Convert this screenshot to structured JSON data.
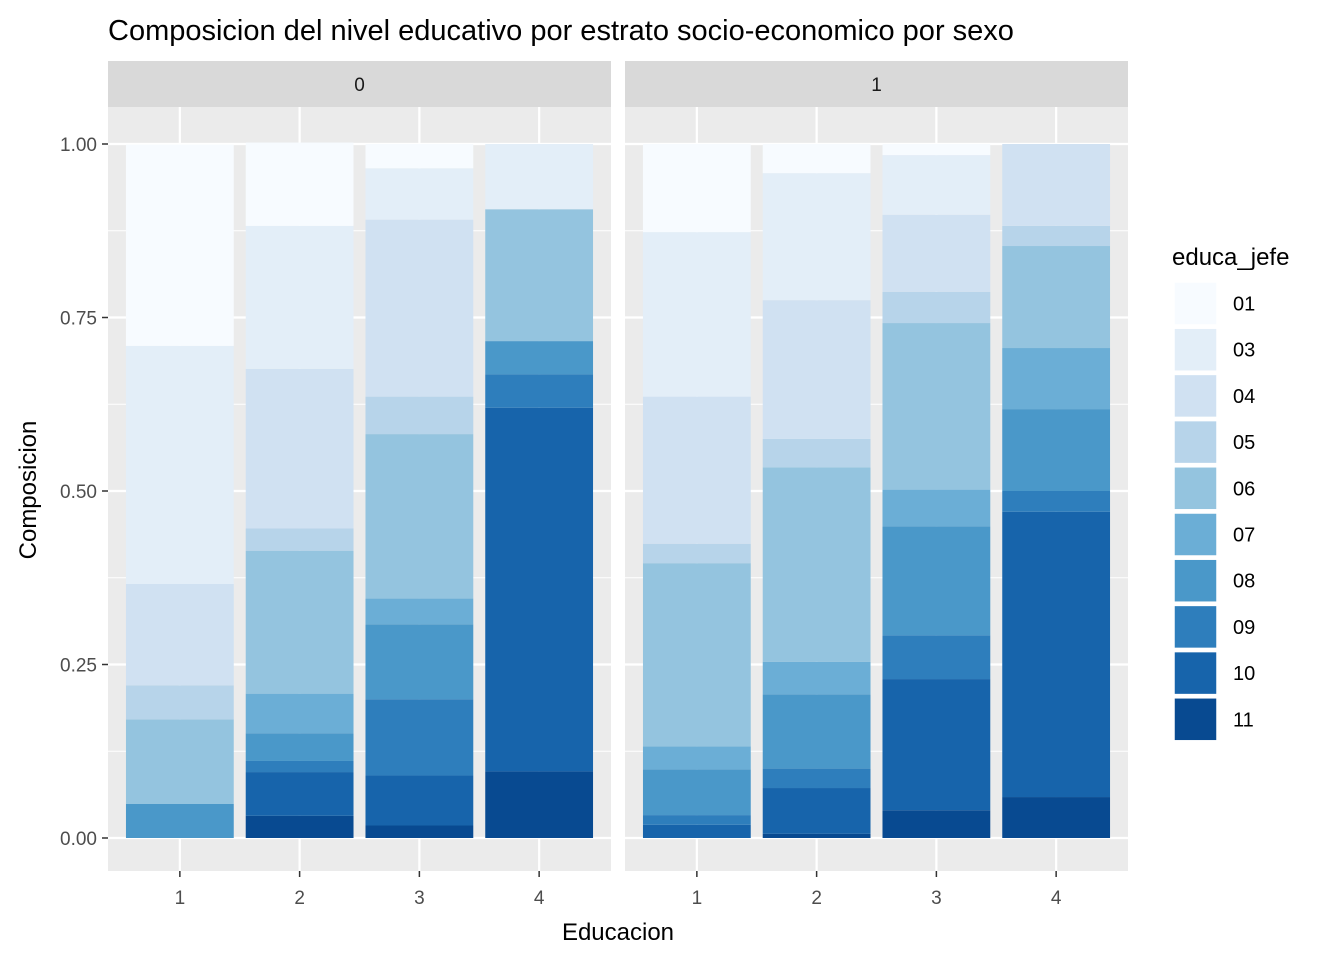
{
  "chart_data": {
    "type": "bar",
    "stacked": true,
    "title": "Composicion del nivel educativo por estrato socio-economico por sexo",
    "xlabel": "Educacion",
    "ylabel": "Composicion",
    "ylim": [
      0,
      1
    ],
    "y_ticks": [
      "0.00",
      "0.25",
      "0.50",
      "0.75",
      "1.00"
    ],
    "categories": [
      "1",
      "2",
      "3",
      "4"
    ],
    "facet_variable": "sexo",
    "facets": [
      "0",
      "1"
    ],
    "grid": true,
    "legend": {
      "title": "educa_jefe",
      "position": "right",
      "entries": [
        "01",
        "03",
        "04",
        "05",
        "06",
        "07",
        "08",
        "09",
        "10",
        "11"
      ],
      "colors": [
        "#F7FBFF",
        "#E3EEF8",
        "#D0E1F2",
        "#B7D4EA",
        "#94C4DF",
        "#6BAED6",
        "#4A98C9",
        "#2E7EBC",
        "#1764AB",
        "#084A91"
      ]
    },
    "panels": [
      {
        "facet": "0",
        "series": [
          {
            "name": "01",
            "values": [
              0.29,
              0.12,
              0.035,
              0.0
            ]
          },
          {
            "name": "03",
            "values": [
              0.343,
              0.206,
              0.074,
              0.094
            ]
          },
          {
            "name": "04",
            "values": [
              0.146,
              0.23,
              0.255,
              0.0
            ]
          },
          {
            "name": "05",
            "values": [
              0.049,
              0.032,
              0.054,
              0.0
            ]
          },
          {
            "name": "06",
            "values": [
              0.122,
              0.206,
              0.237,
              0.19
            ]
          },
          {
            "name": "07",
            "values": [
              0.0,
              0.057,
              0.037,
              0.0
            ]
          },
          {
            "name": "08",
            "values": [
              0.049,
              0.04,
              0.108,
              0.048
            ]
          },
          {
            "name": "09",
            "values": [
              0.0,
              0.016,
              0.11,
              0.048
            ]
          },
          {
            "name": "10",
            "values": [
              0.0,
              0.063,
              0.072,
              0.524
            ]
          },
          {
            "name": "11",
            "values": [
              0.0,
              0.032,
              0.018,
              0.096
            ]
          }
        ]
      },
      {
        "facet": "1",
        "series": [
          {
            "name": "01",
            "values": [
              0.127,
              0.042,
              0.016,
              0.0
            ]
          },
          {
            "name": "03",
            "values": [
              0.237,
              0.183,
              0.086,
              0.0
            ]
          },
          {
            "name": "04",
            "values": [
              0.212,
              0.2,
              0.111,
              0.118
            ]
          },
          {
            "name": "05",
            "values": [
              0.028,
              0.041,
              0.045,
              0.029
            ]
          },
          {
            "name": "06",
            "values": [
              0.264,
              0.28,
              0.24,
              0.147
            ]
          },
          {
            "name": "07",
            "values": [
              0.033,
              0.047,
              0.053,
              0.088
            ]
          },
          {
            "name": "08",
            "values": [
              0.066,
              0.107,
              0.157,
              0.118
            ]
          },
          {
            "name": "09",
            "values": [
              0.014,
              0.028,
              0.063,
              0.03
            ]
          },
          {
            "name": "10",
            "values": [
              0.019,
              0.066,
              0.189,
              0.411
            ]
          },
          {
            "name": "11",
            "values": [
              0.0,
              0.006,
              0.04,
              0.059
            ]
          }
        ]
      }
    ]
  }
}
